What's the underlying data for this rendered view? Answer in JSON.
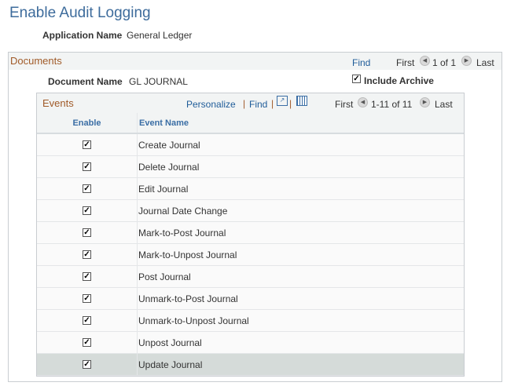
{
  "page": {
    "title": "Enable Audit Logging",
    "app_label": "Application Name",
    "app_value": "General Ledger"
  },
  "documents": {
    "title": "Documents",
    "find": "Find",
    "first": "First",
    "count": "1 of 1",
    "last": "Last",
    "doc_label": "Document Name",
    "doc_value": "GL JOURNAL",
    "include_archive": "Include Archive",
    "include_archive_checked": true
  },
  "events": {
    "title": "Events",
    "personalize": "Personalize",
    "find": "Find",
    "first": "First",
    "count": "1-11 of 11",
    "last": "Last",
    "columns": [
      "Enable",
      "Event Name"
    ],
    "rows": [
      {
        "enabled": true,
        "name": "Create Journal"
      },
      {
        "enabled": true,
        "name": "Delete Journal"
      },
      {
        "enabled": true,
        "name": "Edit Journal"
      },
      {
        "enabled": true,
        "name": "Journal Date Change"
      },
      {
        "enabled": true,
        "name": "Mark-to-Post Journal"
      },
      {
        "enabled": true,
        "name": "Mark-to-Unpost Journal"
      },
      {
        "enabled": true,
        "name": "Post Journal"
      },
      {
        "enabled": true,
        "name": "Unmark-to-Post Journal"
      },
      {
        "enabled": true,
        "name": "Unmark-to-Unpost Journal"
      },
      {
        "enabled": true,
        "name": "Unpost Journal"
      },
      {
        "enabled": true,
        "name": "Update Journal"
      }
    ]
  },
  "colors": {
    "title": "#3e6c9c",
    "section": "#a05a28",
    "link": "#1f5c99",
    "selected_row": "#d5dbd9"
  }
}
